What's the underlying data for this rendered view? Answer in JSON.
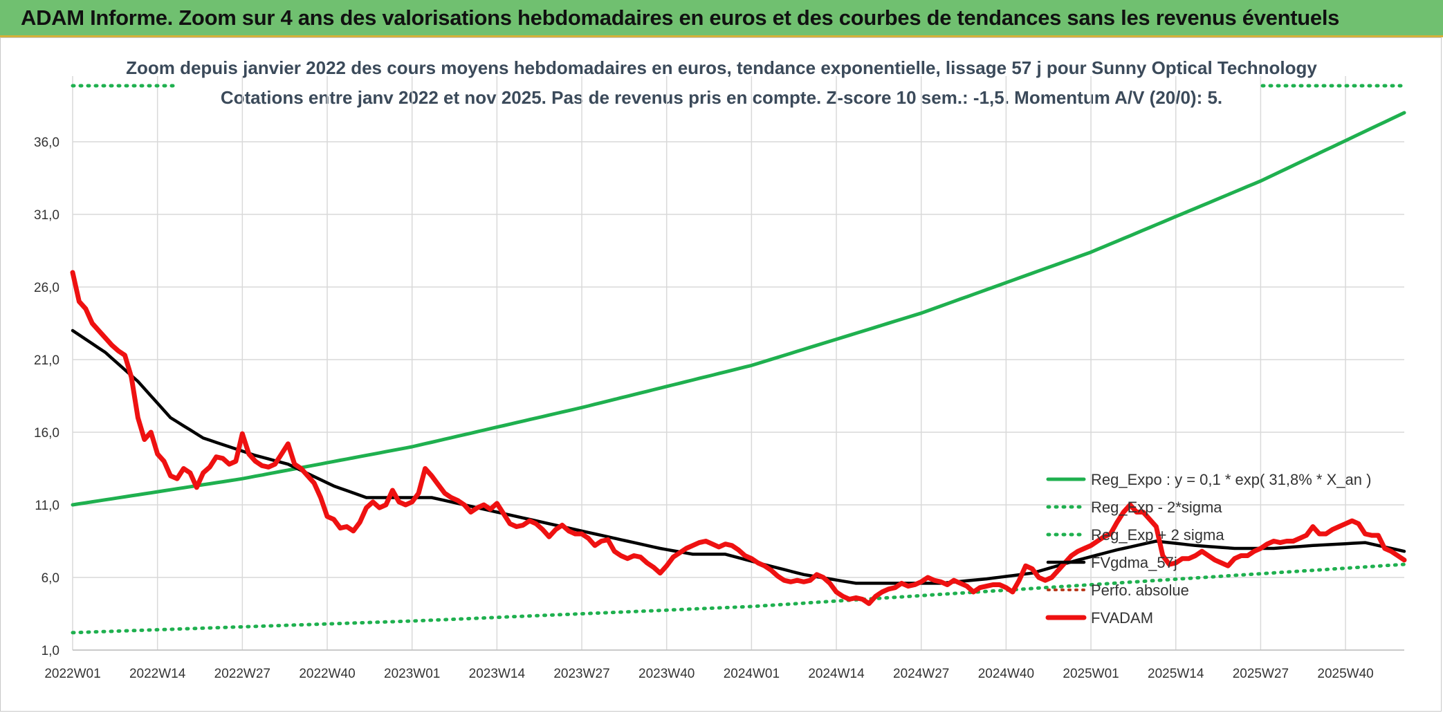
{
  "header": {
    "title": "ADAM Informe. Zoom sur 4 ans des valorisations hebdomadaires en euros et des courbes de tendances sans les revenus éventuels"
  },
  "colors": {
    "banner": "#70c070",
    "trend": "#1fb04f",
    "sigma": "#1fb04f",
    "smoothed": "#000000",
    "price": "#ee1111",
    "perf": "#b83a1c"
  },
  "chart_data": {
    "type": "line",
    "title": "Zoom depuis janvier 2022 des cours moyens hebdomadaires en euros, tendance exponentielle, lissage 57 j pour Sunny Optical Technology",
    "subtitle": "Cotations entre janv 2022 et nov 2025. Pas de revenus pris en compte. Z-score 10 sem.: -1,5. Momentum A/V (20/0): 5.",
    "xlabel": "",
    "ylabel": "",
    "ylim": [
      1.0,
      39.0
    ],
    "yticks": [
      "1,0",
      "6,0",
      "11,0",
      "16,0",
      "21,0",
      "26,0",
      "31,0",
      "36,0"
    ],
    "yticks_values": [
      1,
      6,
      11,
      16,
      21,
      26,
      31,
      36
    ],
    "xticks": [
      "2022W01",
      "2022W14",
      "2022W27",
      "2022W40",
      "2023W01",
      "2023W14",
      "2023W27",
      "2023W40",
      "2024W01",
      "2024W14",
      "2024W27",
      "2024W40",
      "2025W01",
      "2025W14",
      "2025W27",
      "2025W40"
    ],
    "xticks_index": [
      0,
      13,
      26,
      39,
      52,
      65,
      78,
      91,
      104,
      117,
      130,
      143,
      156,
      169,
      182,
      195
    ],
    "x_count": 205,
    "grid": true,
    "legend_position": "right",
    "series": [
      {
        "name": "Reg_Expo : y = 0,1 * exp( 31,8% *  X_an )",
        "style": "solid",
        "anchors": [
          [
            0,
            11.0
          ],
          [
            26,
            12.8
          ],
          [
            52,
            15.0
          ],
          [
            78,
            17.7
          ],
          [
            104,
            20.6
          ],
          [
            130,
            24.2
          ],
          [
            156,
            28.4
          ],
          [
            182,
            33.3
          ],
          [
            204,
            38.0
          ]
        ]
      },
      {
        "name": "Reg_Exp - 2*sigma",
        "style": "dotted",
        "anchors": [
          [
            0,
            2.2
          ],
          [
            52,
            3.0
          ],
          [
            104,
            4.0
          ],
          [
            156,
            5.5
          ],
          [
            204,
            6.9
          ]
        ]
      },
      {
        "name": "Reg_Exp + 2 sigma",
        "style": "dotted",
        "anchors": [
          [
            0,
            39.8
          ],
          [
            204,
            39.8
          ]
        ]
      },
      {
        "name": "FVgdma_57j",
        "style": "solid",
        "anchors": [
          [
            0,
            23.0
          ],
          [
            5,
            21.5
          ],
          [
            10,
            19.5
          ],
          [
            15,
            17.0
          ],
          [
            20,
            15.6
          ],
          [
            28,
            14.4
          ],
          [
            33,
            13.8
          ],
          [
            40,
            12.3
          ],
          [
            45,
            11.5
          ],
          [
            55,
            11.5
          ],
          [
            60,
            11.0
          ],
          [
            65,
            10.5
          ],
          [
            70,
            10.0
          ],
          [
            75,
            9.5
          ],
          [
            80,
            9.0
          ],
          [
            85,
            8.5
          ],
          [
            90,
            8.0
          ],
          [
            95,
            7.6
          ],
          [
            100,
            7.6
          ],
          [
            105,
            7.0
          ],
          [
            112,
            6.2
          ],
          [
            120,
            5.6
          ],
          [
            127,
            5.6
          ],
          [
            133,
            5.6
          ],
          [
            140,
            5.9
          ],
          [
            147,
            6.3
          ],
          [
            154,
            7.2
          ],
          [
            160,
            7.9
          ],
          [
            166,
            8.5
          ],
          [
            172,
            8.2
          ],
          [
            178,
            8.0
          ],
          [
            184,
            8.0
          ],
          [
            190,
            8.2
          ],
          [
            198,
            8.4
          ],
          [
            204,
            7.8
          ]
        ]
      },
      {
        "name": "Perfo. absolue",
        "style": "dotted",
        "anchors": []
      },
      {
        "name": "FVADAM",
        "style": "solid",
        "anchors": [
          [
            0,
            27.0
          ],
          [
            1,
            25.0
          ],
          [
            2,
            24.5
          ],
          [
            3,
            23.5
          ],
          [
            4,
            23.0
          ],
          [
            5,
            22.5
          ],
          [
            6,
            22.0
          ],
          [
            7,
            21.6
          ],
          [
            8,
            21.3
          ],
          [
            9,
            19.8
          ],
          [
            10,
            17.0
          ],
          [
            11,
            15.5
          ],
          [
            12,
            16.0
          ],
          [
            13,
            14.5
          ],
          [
            14,
            14.0
          ],
          [
            15,
            13.0
          ],
          [
            16,
            12.8
          ],
          [
            17,
            13.5
          ],
          [
            18,
            13.2
          ],
          [
            19,
            12.2
          ],
          [
            20,
            13.2
          ],
          [
            21,
            13.6
          ],
          [
            22,
            14.3
          ],
          [
            23,
            14.2
          ],
          [
            24,
            13.8
          ],
          [
            25,
            14.0
          ],
          [
            26,
            15.9
          ],
          [
            27,
            14.5
          ],
          [
            28,
            14.0
          ],
          [
            29,
            13.7
          ],
          [
            30,
            13.6
          ],
          [
            31,
            13.8
          ],
          [
            32,
            14.5
          ],
          [
            33,
            15.2
          ],
          [
            34,
            13.8
          ],
          [
            35,
            13.5
          ],
          [
            36,
            13.0
          ],
          [
            37,
            12.5
          ],
          [
            38,
            11.5
          ],
          [
            39,
            10.2
          ],
          [
            40,
            10.0
          ],
          [
            41,
            9.4
          ],
          [
            42,
            9.5
          ],
          [
            43,
            9.2
          ],
          [
            44,
            9.8
          ],
          [
            45,
            10.8
          ],
          [
            46,
            11.2
          ],
          [
            47,
            10.8
          ],
          [
            48,
            11.0
          ],
          [
            49,
            12.0
          ],
          [
            50,
            11.2
          ],
          [
            51,
            11.0
          ],
          [
            52,
            11.2
          ],
          [
            53,
            11.8
          ],
          [
            54,
            13.5
          ],
          [
            55,
            13.0
          ],
          [
            56,
            12.4
          ],
          [
            57,
            11.8
          ],
          [
            58,
            11.5
          ],
          [
            59,
            11.3
          ],
          [
            60,
            11.0
          ],
          [
            61,
            10.5
          ],
          [
            62,
            10.8
          ],
          [
            63,
            11.0
          ],
          [
            64,
            10.7
          ],
          [
            65,
            11.1
          ],
          [
            66,
            10.4
          ],
          [
            67,
            9.7
          ],
          [
            68,
            9.5
          ],
          [
            69,
            9.6
          ],
          [
            70,
            9.9
          ],
          [
            71,
            9.7
          ],
          [
            72,
            9.3
          ],
          [
            73,
            8.8
          ],
          [
            74,
            9.3
          ],
          [
            75,
            9.6
          ],
          [
            76,
            9.2
          ],
          [
            77,
            9.0
          ],
          [
            78,
            9.0
          ],
          [
            79,
            8.7
          ],
          [
            80,
            8.2
          ],
          [
            81,
            8.5
          ],
          [
            82,
            8.6
          ],
          [
            83,
            7.8
          ],
          [
            84,
            7.5
          ],
          [
            85,
            7.3
          ],
          [
            86,
            7.5
          ],
          [
            87,
            7.4
          ],
          [
            88,
            7.0
          ],
          [
            89,
            6.7
          ],
          [
            90,
            6.3
          ],
          [
            91,
            6.8
          ],
          [
            92,
            7.4
          ],
          [
            93,
            7.7
          ],
          [
            94,
            8.0
          ],
          [
            95,
            8.2
          ],
          [
            96,
            8.4
          ],
          [
            97,
            8.5
          ],
          [
            98,
            8.3
          ],
          [
            99,
            8.1
          ],
          [
            100,
            8.3
          ],
          [
            101,
            8.2
          ],
          [
            102,
            7.9
          ],
          [
            103,
            7.5
          ],
          [
            104,
            7.3
          ],
          [
            105,
            7.0
          ],
          [
            106,
            6.8
          ],
          [
            107,
            6.5
          ],
          [
            108,
            6.1
          ],
          [
            109,
            5.8
          ],
          [
            110,
            5.7
          ],
          [
            111,
            5.8
          ],
          [
            112,
            5.7
          ],
          [
            113,
            5.8
          ],
          [
            114,
            6.2
          ],
          [
            115,
            6.0
          ],
          [
            116,
            5.6
          ],
          [
            117,
            5.0
          ],
          [
            118,
            4.7
          ],
          [
            119,
            4.5
          ],
          [
            120,
            4.6
          ],
          [
            121,
            4.5
          ],
          [
            122,
            4.2
          ],
          [
            123,
            4.7
          ],
          [
            124,
            5.0
          ],
          [
            125,
            5.2
          ],
          [
            126,
            5.3
          ],
          [
            127,
            5.6
          ],
          [
            128,
            5.4
          ],
          [
            129,
            5.5
          ],
          [
            130,
            5.7
          ],
          [
            131,
            6.0
          ],
          [
            132,
            5.8
          ],
          [
            133,
            5.7
          ],
          [
            134,
            5.5
          ],
          [
            135,
            5.8
          ],
          [
            136,
            5.6
          ],
          [
            137,
            5.4
          ],
          [
            138,
            5.0
          ],
          [
            139,
            5.3
          ],
          [
            140,
            5.4
          ],
          [
            141,
            5.5
          ],
          [
            142,
            5.5
          ],
          [
            143,
            5.3
          ],
          [
            144,
            5.0
          ],
          [
            145,
            5.8
          ],
          [
            146,
            6.8
          ],
          [
            147,
            6.6
          ],
          [
            148,
            6.0
          ],
          [
            149,
            5.8
          ],
          [
            150,
            6.0
          ],
          [
            151,
            6.5
          ],
          [
            152,
            7.0
          ],
          [
            153,
            7.5
          ],
          [
            154,
            7.8
          ],
          [
            155,
            8.0
          ],
          [
            156,
            8.2
          ],
          [
            157,
            8.5
          ],
          [
            158,
            8.8
          ],
          [
            159,
            9.0
          ],
          [
            160,
            9.8
          ],
          [
            161,
            10.5
          ],
          [
            162,
            11.0
          ],
          [
            163,
            10.5
          ],
          [
            164,
            10.5
          ],
          [
            165,
            10.0
          ],
          [
            166,
            9.5
          ],
          [
            167,
            7.5
          ],
          [
            168,
            6.9
          ],
          [
            169,
            7.0
          ],
          [
            170,
            7.3
          ],
          [
            171,
            7.3
          ],
          [
            172,
            7.5
          ],
          [
            173,
            7.8
          ],
          [
            174,
            7.5
          ],
          [
            175,
            7.2
          ],
          [
            176,
            7.0
          ],
          [
            177,
            6.8
          ],
          [
            178,
            7.3
          ],
          [
            179,
            7.5
          ],
          [
            180,
            7.5
          ],
          [
            181,
            7.8
          ],
          [
            182,
            8.0
          ],
          [
            183,
            8.3
          ],
          [
            184,
            8.5
          ],
          [
            185,
            8.4
          ],
          [
            186,
            8.5
          ],
          [
            187,
            8.5
          ],
          [
            188,
            8.7
          ],
          [
            189,
            8.9
          ],
          [
            190,
            9.5
          ],
          [
            191,
            9.0
          ],
          [
            192,
            9.0
          ],
          [
            193,
            9.3
          ],
          [
            194,
            9.5
          ],
          [
            195,
            9.7
          ],
          [
            196,
            9.9
          ],
          [
            197,
            9.7
          ],
          [
            198,
            9.0
          ],
          [
            199,
            8.9
          ],
          [
            200,
            8.9
          ],
          [
            201,
            8.0
          ],
          [
            202,
            7.8
          ],
          [
            203,
            7.5
          ],
          [
            204,
            7.2
          ]
        ]
      }
    ]
  }
}
